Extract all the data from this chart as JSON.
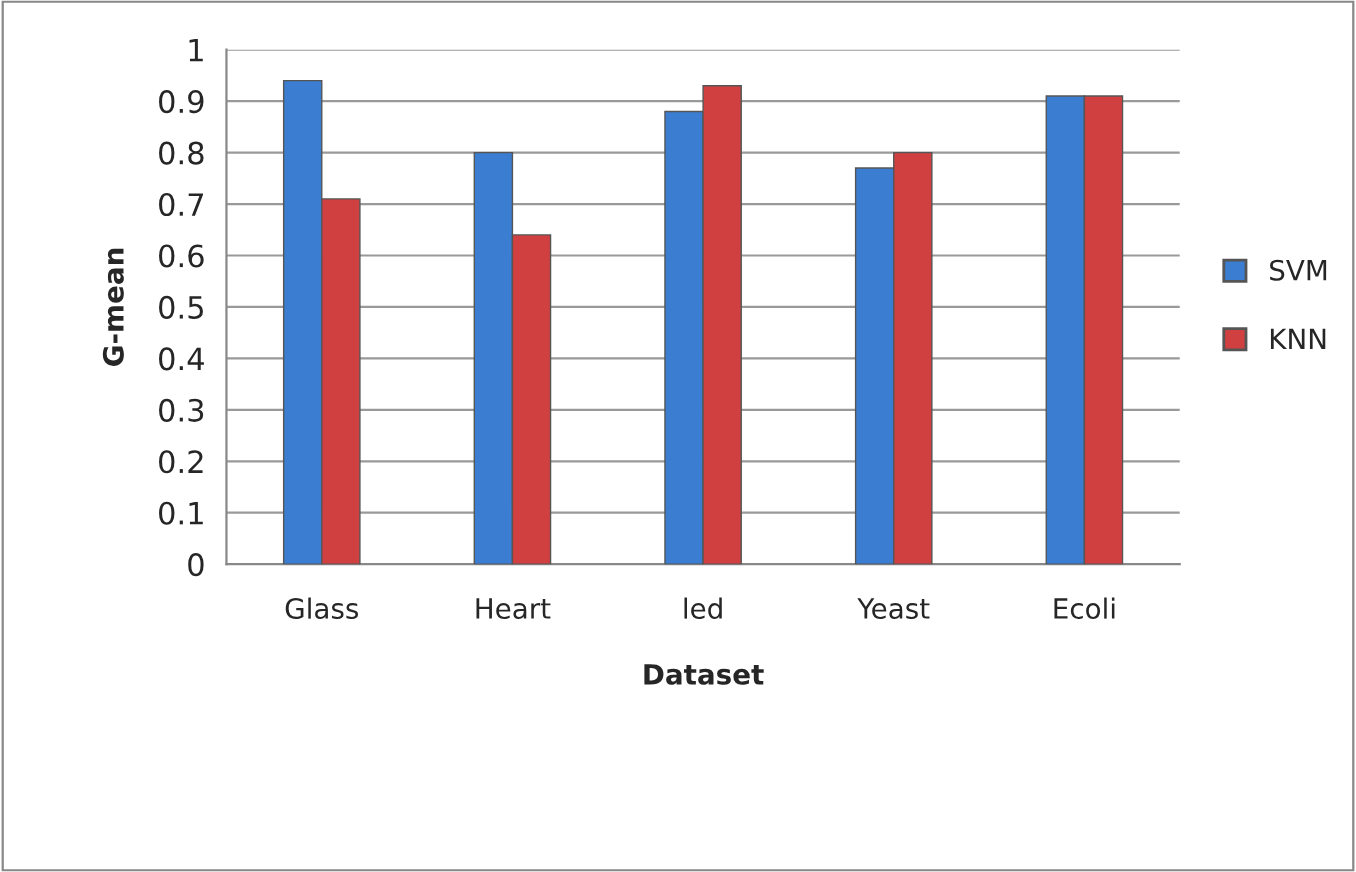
{
  "chart_data": {
    "type": "bar",
    "xlabel": "Dataset",
    "ylabel": "G-mean",
    "categories": [
      "Glass",
      "Heart",
      "led",
      "Yeast",
      "Ecoli"
    ],
    "series": [
      {
        "name": "SVM",
        "color": "#3b7dd0",
        "values": [
          0.94,
          0.8,
          0.88,
          0.77,
          0.91
        ]
      },
      {
        "name": "KNN",
        "color": "#d04040",
        "values": [
          0.71,
          0.64,
          0.93,
          0.8,
          0.91
        ]
      }
    ],
    "ylim": [
      0,
      1
    ],
    "yticks": [
      0,
      0.1,
      0.2,
      0.3,
      0.4,
      0.5,
      0.6,
      0.7,
      0.8,
      0.9,
      1
    ],
    "grid": "y",
    "legend": "right"
  }
}
